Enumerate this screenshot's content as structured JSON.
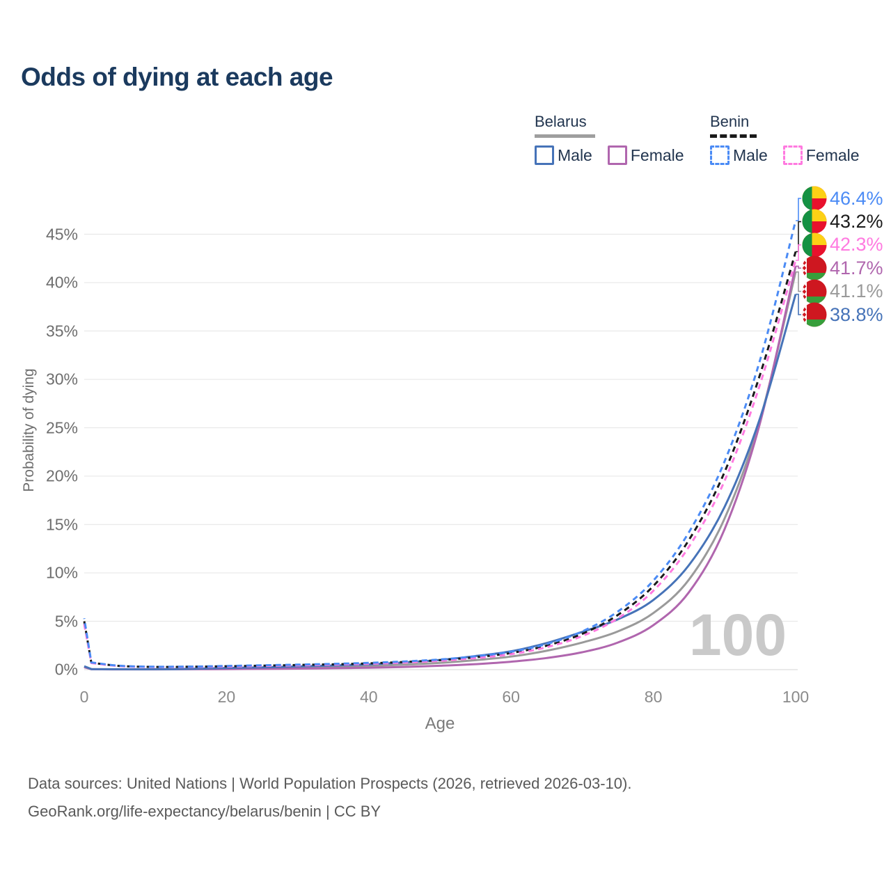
{
  "title": "Odds of dying at each age",
  "watermark": "100",
  "legend": {
    "groups": [
      {
        "label": "Belarus",
        "line_style": "solid",
        "rule_color": "#9e9e9e",
        "items": [
          {
            "label": "Male",
            "color": "#4673b8"
          },
          {
            "label": "Female",
            "color": "#b066ae"
          }
        ]
      },
      {
        "label": "Benin",
        "line_style": "dashed",
        "rule_color": "#1a1a1a",
        "items": [
          {
            "label": "Male",
            "color": "#4b8bf5"
          },
          {
            "label": "Female",
            "color": "#ff7ae0"
          }
        ]
      }
    ]
  },
  "footer": {
    "line1": "Data sources: United Nations | World Population Prospects (2026, retrieved 2026-03-10).",
    "line2": "GeoRank.org/life-expectancy/belarus/benin | CC BY"
  },
  "chart_data": {
    "type": "line",
    "title": "Odds of dying at each age",
    "xlabel": "Age",
    "ylabel": "Probability of dying",
    "xlim": [
      0,
      100
    ],
    "ylim": [
      0,
      48
    ],
    "xticks": [
      0,
      20,
      40,
      60,
      80,
      100
    ],
    "yticks": [
      0,
      5,
      10,
      15,
      20,
      25,
      30,
      35,
      40,
      45
    ],
    "ytick_suffix": "%",
    "grid": "horizontal",
    "legend_position": "top-right",
    "x": [
      0,
      1,
      5,
      10,
      15,
      20,
      25,
      30,
      35,
      40,
      45,
      50,
      55,
      60,
      65,
      70,
      75,
      80,
      85,
      90,
      95,
      100
    ],
    "series": [
      {
        "id": "belarus-total",
        "name": "Belarus (both sexes)",
        "country": "Belarus",
        "sex": "both",
        "color": "#9a9a9a",
        "dash": "solid",
        "flag": "belarus",
        "end_label": "41.1%",
        "values": [
          0.3,
          0.05,
          0.035,
          0.035,
          0.06,
          0.12,
          0.16,
          0.22,
          0.29,
          0.38,
          0.52,
          0.7,
          0.98,
          1.35,
          1.95,
          2.8,
          3.95,
          5.85,
          9.3,
          15.6,
          25.8,
          41.1
        ]
      },
      {
        "id": "belarus-female",
        "name": "Belarus Female",
        "country": "Belarus",
        "sex": "female",
        "color": "#b066ae",
        "dash": "solid",
        "flag": "belarus",
        "end_label": "41.7%",
        "values": [
          0.25,
          0.04,
          0.03,
          0.03,
          0.04,
          0.06,
          0.08,
          0.11,
          0.15,
          0.2,
          0.28,
          0.4,
          0.57,
          0.82,
          1.2,
          1.8,
          2.8,
          4.6,
          8.0,
          14.5,
          25.5,
          41.7
        ]
      },
      {
        "id": "belarus-male",
        "name": "Belarus Male",
        "country": "Belarus",
        "sex": "male",
        "color": "#4673b8",
        "dash": "solid",
        "flag": "belarus",
        "end_label": "38.8%",
        "values": [
          0.35,
          0.06,
          0.04,
          0.04,
          0.08,
          0.17,
          0.24,
          0.33,
          0.43,
          0.55,
          0.75,
          1.0,
          1.4,
          1.9,
          2.75,
          3.9,
          5.2,
          7.2,
          10.8,
          16.8,
          26.0,
          38.8
        ]
      },
      {
        "id": "benin-total",
        "name": "Benin (both sexes)",
        "country": "Benin",
        "sex": "both",
        "color": "#1a1a1a",
        "dash": "dashed",
        "flag": "benin",
        "end_label": "43.2%",
        "values": [
          5.0,
          0.72,
          0.38,
          0.28,
          0.3,
          0.35,
          0.41,
          0.48,
          0.55,
          0.65,
          0.79,
          0.98,
          1.28,
          1.72,
          2.48,
          3.7,
          5.65,
          8.65,
          13.4,
          20.4,
          30.5,
          43.2
        ]
      },
      {
        "id": "benin-female",
        "name": "Benin Female",
        "country": "Benin",
        "sex": "female",
        "color": "#ff7ae0",
        "dash": "dashed",
        "flag": "benin",
        "end_label": "42.3%",
        "values": [
          4.7,
          0.68,
          0.36,
          0.27,
          0.28,
          0.32,
          0.38,
          0.44,
          0.51,
          0.6,
          0.73,
          0.91,
          1.19,
          1.6,
          2.32,
          3.47,
          5.3,
          8.15,
          12.7,
          19.5,
          29.5,
          42.3
        ]
      },
      {
        "id": "benin-male",
        "name": "Benin Male",
        "country": "Benin",
        "sex": "male",
        "color": "#4b8bf5",
        "dash": "dashed",
        "flag": "benin",
        "end_label": "46.4%",
        "values": [
          5.3,
          0.75,
          0.4,
          0.3,
          0.32,
          0.38,
          0.45,
          0.52,
          0.6,
          0.7,
          0.85,
          1.05,
          1.38,
          1.85,
          2.65,
          3.95,
          6.0,
          9.2,
          14.2,
          21.5,
          32.0,
          46.4
        ]
      }
    ]
  }
}
